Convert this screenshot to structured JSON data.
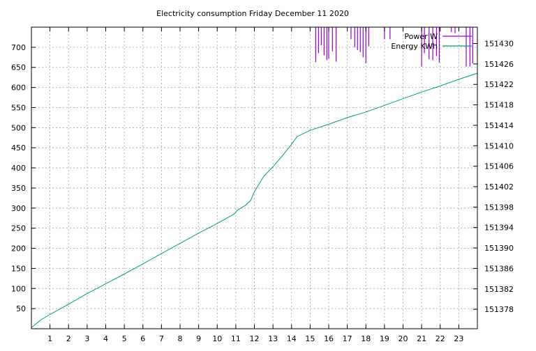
{
  "chart_data": {
    "type": "line",
    "title": "Electricity consumption Friday December 11 2020",
    "x_ticks": [
      "1",
      "2",
      "3",
      "4",
      "5",
      "6",
      "7",
      "8",
      "9",
      "10",
      "11",
      "12",
      "13",
      "14",
      "15",
      "16",
      "17",
      "18",
      "19",
      "20",
      "21",
      "22",
      "23"
    ],
    "xlim": [
      0,
      24
    ],
    "y_left_ticks": [
      "50",
      "100",
      "150",
      "200",
      "250",
      "300",
      "350",
      "400",
      "450",
      "500",
      "550",
      "600",
      "650",
      "700"
    ],
    "ylim_left": [
      0,
      750
    ],
    "y_right_ticks": [
      "151378",
      "151382",
      "151386",
      "151390",
      "151394",
      "151398",
      "151402",
      "151406",
      "151410",
      "151414",
      "151418",
      "151422",
      "151426",
      "151430"
    ],
    "ylim_right": [
      151374.2,
      151433.2
    ],
    "grid": true,
    "legend_position": "top-right",
    "series": [
      {
        "name": "Power W",
        "axis": "left",
        "color": "#9400d3",
        "style": "impulses-from-top",
        "x": [
          15.3,
          15.45,
          15.6,
          15.75,
          15.9,
          16.0,
          16.2,
          16.4,
          17.2,
          17.4,
          17.55,
          17.7,
          17.85,
          18.0,
          18.15,
          19.0,
          19.3,
          21.0,
          21.15,
          21.4,
          21.6,
          21.8,
          21.95,
          22.6,
          22.8,
          23.4,
          23.6,
          23.75
        ],
        "values": [
          663,
          685,
          705,
          680,
          668,
          672,
          690,
          664,
          720,
          700,
          693,
          688,
          675,
          660,
          702,
          720,
          720,
          652,
          685,
          670,
          668,
          678,
          662,
          738,
          735,
          652,
          652,
          660
        ]
      },
      {
        "name": "Energy KWh",
        "axis": "right",
        "color": "#009e73",
        "x": [
          0,
          0.5,
          1,
          2,
          3,
          4,
          5,
          6,
          7,
          8,
          9,
          10,
          10.9,
          11.1,
          11.5,
          11.8,
          12.0,
          12.5,
          13.0,
          13.5,
          14.0,
          14.3,
          15.0,
          16.0,
          17.0,
          18.0,
          19.0,
          20.0,
          21.0,
          22.0,
          23.0,
          24.0
        ],
        "values": [
          151374.4,
          151375.9,
          151377.0,
          151379.0,
          151381.1,
          151383.0,
          151384.9,
          151386.9,
          151388.9,
          151390.9,
          151392.9,
          151394.8,
          151396.6,
          151397.4,
          151398.3,
          151399.3,
          151401.0,
          151404.0,
          151405.9,
          151408.0,
          151410.3,
          151411.8,
          151413.0,
          151414.2,
          151415.5,
          151416.6,
          151417.9,
          151419.2,
          151420.5,
          151421.7,
          151423.0,
          151424.2
        ]
      }
    ]
  }
}
